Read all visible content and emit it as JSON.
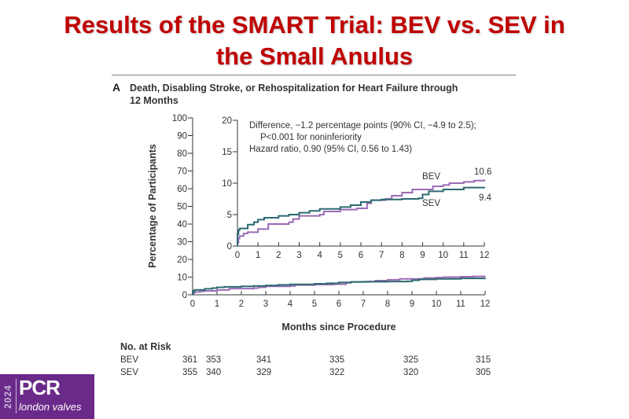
{
  "slide": {
    "title": "Results of the SMART Trial: BEV vs. SEV in the Small Anulus",
    "title_line1": "Results of the SMART Trial: BEV vs. SEV in",
    "title_line2": "the Small Anulus",
    "title_color": "#c00000"
  },
  "panel": {
    "letter": "A",
    "title": "Death, Disabling Stroke, or Rehospitalization for Heart Failure through 12 Months",
    "title_line1": "Death, Disabling Stroke, or Rehospitalization for Heart Failure through",
    "title_line2": "12 Months"
  },
  "chart_data": [
    {
      "id": "main",
      "type": "line",
      "title": "Death, Disabling Stroke, or Rehospitalization for Heart Failure through 12 Months",
      "xlabel": "Months since Procedure",
      "ylabel": "Percentage of Participants",
      "xlim": [
        0,
        12
      ],
      "ylim": [
        0,
        100
      ],
      "xticks": [
        0,
        1,
        2,
        3,
        4,
        5,
        6,
        7,
        8,
        9,
        10,
        11,
        12
      ],
      "yticks": [
        0,
        10,
        20,
        30,
        40,
        50,
        60,
        70,
        80,
        90,
        100
      ],
      "grid": false,
      "series": [
        {
          "name": "BEV",
          "color": "#9b6bb5",
          "x": [
            0,
            0.05,
            0.1,
            0.3,
            0.5,
            1.0,
            1.5,
            2.5,
            2.7,
            3.0,
            4.0,
            4.2,
            5.0,
            5.8,
            6.3,
            6.5,
            7.2,
            7.5,
            8.0,
            8.5,
            9.5,
            10.0,
            10.3,
            11.0,
            11.5,
            12.0
          ],
          "y": [
            0.5,
            1.2,
            1.6,
            2.0,
            2.2,
            2.7,
            3.5,
            3.8,
            4.3,
            4.8,
            5.0,
            5.5,
            5.8,
            6.0,
            6.8,
            7.3,
            7.5,
            8.0,
            8.5,
            9.0,
            9.5,
            9.7,
            10.0,
            10.2,
            10.4,
            10.6
          ]
        },
        {
          "name": "SEV",
          "color": "#2b6a70",
          "x": [
            0,
            0.05,
            0.1,
            0.5,
            0.8,
            1.0,
            1.3,
            2.0,
            2.5,
            3.0,
            3.5,
            4.0,
            5.0,
            5.5,
            6.0,
            6.5,
            7.0,
            8.0,
            8.8,
            9.0,
            9.3,
            10.0,
            11.0,
            12.0
          ],
          "y": [
            1.9,
            2.5,
            2.8,
            3.4,
            3.8,
            4.2,
            4.5,
            4.8,
            5.0,
            5.3,
            5.6,
            5.9,
            6.2,
            6.5,
            7.0,
            7.3,
            7.4,
            7.5,
            7.6,
            8.2,
            8.7,
            9.0,
            9.3,
            9.4
          ]
        }
      ]
    },
    {
      "id": "inset",
      "type": "line",
      "xlim": [
        0,
        12
      ],
      "ylim": [
        0,
        20
      ],
      "xticks": [
        0,
        1,
        2,
        3,
        4,
        5,
        6,
        7,
        8,
        9,
        10,
        11,
        12
      ],
      "yticks": [
        0,
        5,
        10,
        15,
        20
      ],
      "annotations": [
        "Difference, −1.2 percentage points (90% CI, −4.9 to 2.5);",
        "P<0.001 for noninferiority",
        "Hazard ratio, 0.90 (95% CI, 0.56 to 1.43)"
      ],
      "series_labels": [
        {
          "name": "BEV",
          "end_value": "10.6"
        },
        {
          "name": "SEV",
          "end_value": "9.4"
        }
      ]
    }
  ],
  "risk_table": {
    "heading": "No. at Risk",
    "months": [
      0,
      1,
      3,
      6,
      9,
      12
    ],
    "rows": [
      {
        "label": "BEV",
        "values": [
          "361",
          "353",
          "341",
          "335",
          "325",
          "315"
        ]
      },
      {
        "label": "SEV",
        "values": [
          "355",
          "340",
          "329",
          "322",
          "320",
          "305"
        ]
      }
    ]
  },
  "logo": {
    "year": "2024",
    "brand": "PCR",
    "subtitle": "london valves",
    "bg_color": "#6a2a8a"
  }
}
